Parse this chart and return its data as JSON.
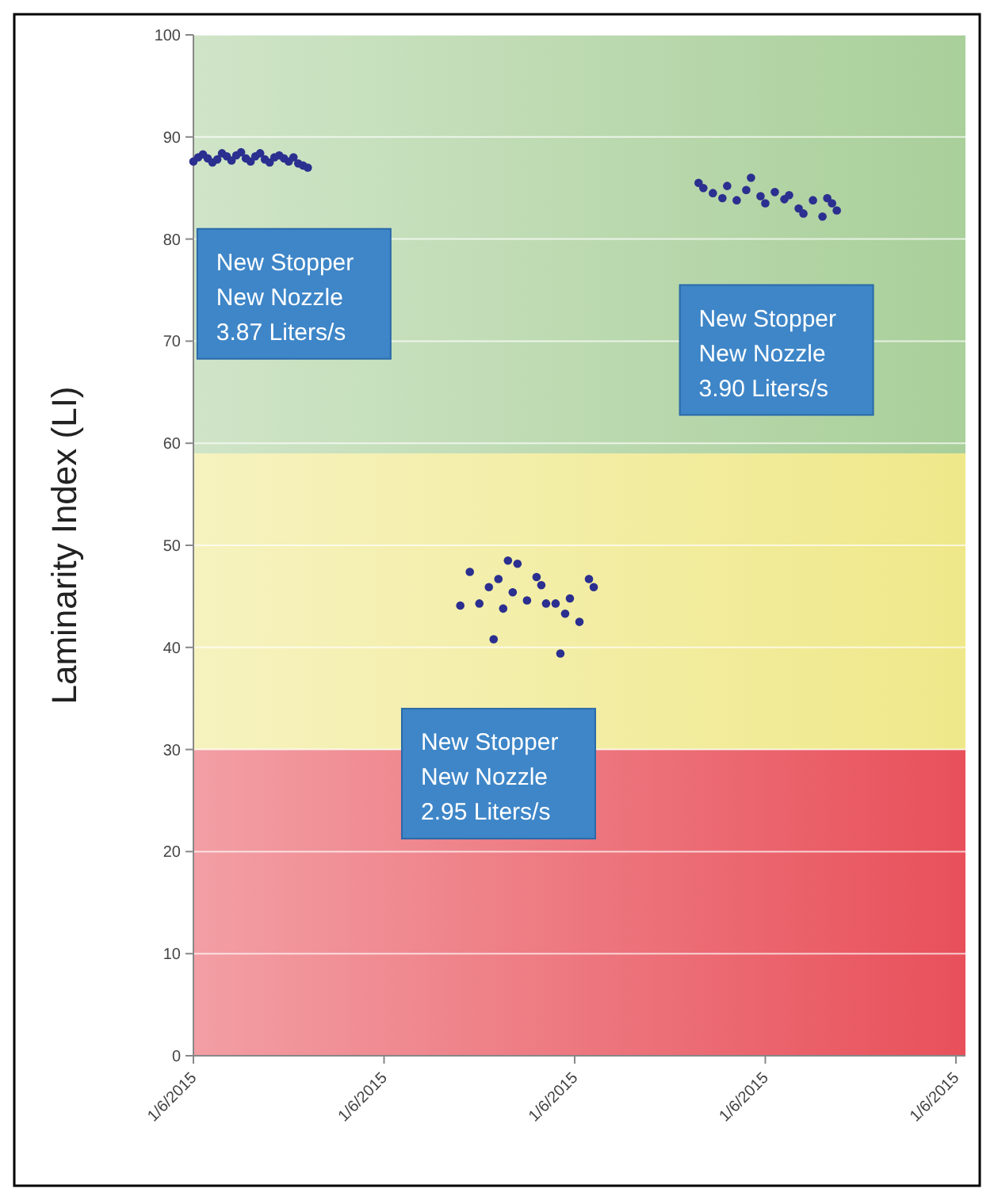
{
  "chart_data": {
    "type": "scatter",
    "ylabel": "Laminarity Index (LI)",
    "categories": [
      "1/6/2015",
      null,
      null,
      null,
      null,
      null,
      null,
      null,
      null,
      null,
      null,
      null,
      null,
      null,
      null,
      null,
      null,
      null,
      null,
      null,
      null,
      null,
      null,
      null,
      null,
      null,
      null,
      null,
      null,
      null,
      null,
      null,
      null,
      null,
      null,
      null,
      null,
      null,
      null,
      null,
      "1/6/2015",
      null,
      null,
      null,
      null,
      null,
      null,
      null,
      null,
      null,
      null,
      null,
      null,
      null,
      null,
      null,
      null,
      null,
      null,
      null,
      null,
      null,
      null,
      null,
      null,
      null,
      null,
      null,
      null,
      null,
      null,
      null,
      null,
      null,
      null,
      null,
      null,
      null,
      null,
      null,
      "1/6/2015",
      null,
      null,
      null,
      null,
      null,
      null,
      null,
      null,
      null,
      null,
      null,
      null,
      null,
      null,
      null,
      null,
      null,
      null,
      null,
      null,
      null,
      null,
      null,
      null,
      null,
      null,
      null,
      null,
      null,
      null,
      null,
      null,
      null,
      null,
      null,
      null,
      null,
      null,
      null,
      "1/6/2015",
      null,
      null,
      null,
      null,
      null,
      null,
      null,
      null,
      null,
      null,
      null,
      null,
      null,
      null,
      null,
      null,
      null,
      null,
      null,
      null,
      null,
      null,
      null,
      null,
      null,
      null,
      null,
      null,
      null,
      null,
      null,
      null,
      null,
      null,
      null,
      null,
      null,
      null,
      null,
      "1/6/2015",
      null,
      null
    ],
    "ylim": [
      0,
      100
    ],
    "yticks": [
      0,
      10,
      20,
      30,
      40,
      50,
      60,
      70,
      80,
      90,
      100
    ],
    "grid": "y",
    "marker": "circle",
    "bands": [
      {
        "axis": "y",
        "from": 0,
        "to": 30,
        "color": "#e8505a"
      },
      {
        "axis": "y",
        "from": 30,
        "to": 59,
        "color": "#efe88a"
      },
      {
        "axis": "y",
        "from": 59,
        "to": 100,
        "color": "#a9cf9a"
      }
    ],
    "series": [
      {
        "color": "#2b2f8f",
        "values": [
          87.6,
          88.0,
          88.3,
          87.9,
          87.5,
          87.8,
          88.4,
          88.1,
          87.7,
          88.2,
          88.5,
          87.9,
          87.6,
          88.1,
          88.4,
          87.8,
          87.5,
          88.0,
          88.2,
          87.9,
          87.6,
          88.0,
          87.4,
          87.2,
          87.0,
          null,
          null,
          null,
          null,
          null,
          null,
          null,
          null,
          null,
          null,
          null,
          null,
          null,
          null,
          null,
          null,
          null,
          null,
          null,
          null,
          null,
          null,
          null,
          null,
          null,
          null,
          null,
          null,
          null,
          null,
          null,
          44.1,
          null,
          47.4,
          null,
          44.3,
          null,
          45.9,
          40.8,
          46.7,
          43.8,
          48.5,
          45.4,
          48.2,
          null,
          44.6,
          null,
          46.9,
          46.1,
          44.3,
          null,
          44.3,
          39.4,
          43.3,
          44.8,
          null,
          42.5,
          null,
          46.7,
          45.9,
          null,
          null,
          null,
          null,
          null,
          null,
          null,
          null,
          null,
          null,
          null,
          null,
          null,
          null,
          null,
          null,
          null,
          null,
          null,
          null,
          null,
          85.5,
          85.0,
          null,
          84.5,
          null,
          84.0,
          85.2,
          null,
          83.8,
          null,
          84.8,
          86.0,
          null,
          84.2,
          83.5,
          null,
          84.6,
          null,
          83.9,
          84.3,
          null,
          83.0,
          82.5,
          null,
          83.8,
          null,
          82.2,
          84.0,
          83.5,
          82.8,
          null,
          null,
          null,
          null,
          null,
          null,
          null,
          null,
          null,
          null,
          null,
          null,
          null,
          null,
          null,
          null,
          null,
          null,
          null,
          null,
          null,
          null,
          null,
          null,
          null,
          null,
          null
        ]
      }
    ],
    "annotations": [
      "New Stopper\nNew Nozzle\n3.87 Liters/s",
      "New Stopper\nNew Nozzle\n3.90 Liters/s",
      "New Stopper\nNew Nozzle\n2.95 Liters/s"
    ]
  }
}
